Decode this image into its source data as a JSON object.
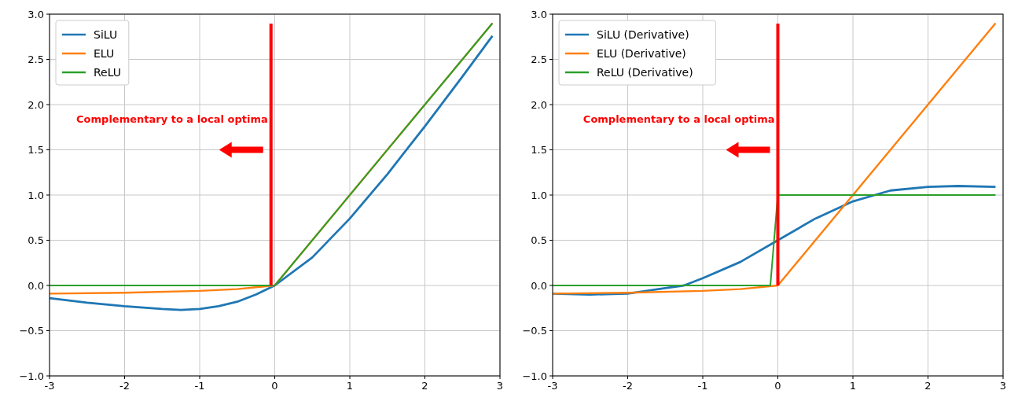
{
  "chart_data": [
    {
      "type": "line",
      "xlim": [
        -3,
        3
      ],
      "ylim": [
        -1,
        3
      ],
      "xticks": [
        -3,
        -2,
        -1,
        0,
        1,
        2,
        3
      ],
      "yticks": [
        {
          "value": -1,
          "label": "−1.0"
        },
        {
          "value": -0.5,
          "label": "−0.5"
        },
        {
          "value": 0,
          "label": "0.0"
        },
        {
          "value": 0.5,
          "label": "0.5"
        },
        {
          "value": 1,
          "label": "1.0"
        },
        {
          "value": 1.5,
          "label": "1.5"
        },
        {
          "value": 2,
          "label": "2.0"
        },
        {
          "value": 2.5,
          "label": "2.5"
        },
        {
          "value": 3,
          "label": "3.0"
        }
      ],
      "grid": true,
      "legend": "top left",
      "series": [
        {
          "name": "SiLU",
          "color": "#1f77b4",
          "x": [
            -3,
            -2.5,
            -2,
            -1.5,
            -1.25,
            -1,
            -0.75,
            -0.5,
            -0.25,
            0,
            0.5,
            1,
            1.5,
            2,
            2.5,
            2.9
          ],
          "values": [
            -0.14,
            -0.19,
            -0.23,
            -0.26,
            -0.27,
            -0.26,
            -0.23,
            -0.18,
            -0.1,
            0,
            0.31,
            0.74,
            1.23,
            1.76,
            2.31,
            2.76
          ]
        },
        {
          "name": "ELU",
          "color": "#ff7f0e",
          "x": [
            -3,
            -2,
            -1,
            -0.5,
            -0.25,
            0,
            2.9
          ],
          "values": [
            -0.09,
            -0.08,
            -0.06,
            -0.04,
            -0.02,
            0,
            2.9
          ]
        },
        {
          "name": "ReLU",
          "color": "#2ca02c",
          "x": [
            -3,
            0,
            2.9
          ],
          "values": [
            0,
            0,
            2.9
          ]
        }
      ],
      "ref_lines": [
        {
          "axis": "x",
          "value": -0.05,
          "color": "#ff0000"
        }
      ],
      "annotations": [
        "Complementary to a local optima"
      ]
    },
    {
      "type": "line",
      "xlim": [
        -3,
        3
      ],
      "ylim": [
        -1,
        3
      ],
      "xticks": [
        -3,
        -2,
        -1,
        0,
        1,
        2,
        3
      ],
      "yticks": [
        {
          "value": -1,
          "label": "−1.0"
        },
        {
          "value": -0.5,
          "label": "−0.5"
        },
        {
          "value": 0,
          "label": "0.0"
        },
        {
          "value": 0.5,
          "label": "0.5"
        },
        {
          "value": 1,
          "label": "1.0"
        },
        {
          "value": 1.5,
          "label": "1.5"
        },
        {
          "value": 2,
          "label": "2.0"
        },
        {
          "value": 2.5,
          "label": "2.5"
        },
        {
          "value": 3,
          "label": "3.0"
        }
      ],
      "grid": true,
      "legend": "top left",
      "series": [
        {
          "name": "SiLU (Derivative)",
          "color": "#1f77b4",
          "x": [
            -3,
            -2.5,
            -2,
            -1.5,
            -1.25,
            -1,
            -0.5,
            0,
            0.5,
            1,
            1.5,
            2,
            2.4,
            2.9
          ],
          "values": [
            -0.09,
            -0.1,
            -0.09,
            -0.03,
            0,
            0.08,
            0.26,
            0.5,
            0.74,
            0.93,
            1.05,
            1.09,
            1.1,
            1.09
          ]
        },
        {
          "name": "ELU (Derivative)",
          "color": "#ff7f0e",
          "x": [
            -3,
            -2,
            -1,
            -0.5,
            0,
            2.9
          ],
          "values": [
            -0.09,
            -0.08,
            -0.06,
            -0.04,
            0,
            2.9
          ]
        },
        {
          "name": "ReLU (Derivative)",
          "color": "#2ca02c",
          "x": [
            -3,
            -0.1,
            0,
            2.9
          ],
          "values": [
            0,
            0,
            1,
            1
          ]
        }
      ],
      "ref_lines": [
        {
          "axis": "x",
          "value": 0,
          "color": "#ff0000"
        }
      ],
      "annotations": [
        "Complementary to a local optima"
      ]
    }
  ]
}
